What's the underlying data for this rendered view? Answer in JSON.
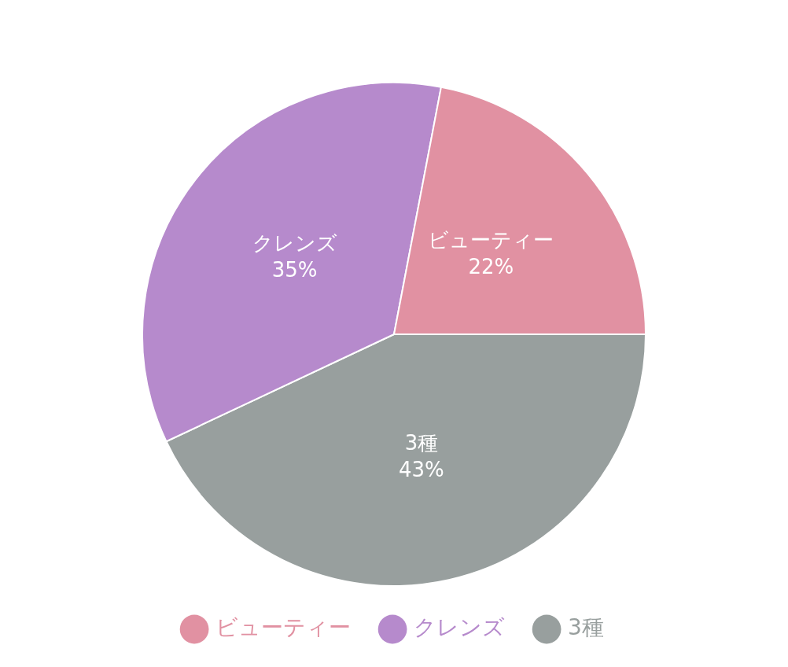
{
  "chart_data": {
    "type": "pie",
    "categories": [
      "ビューティー",
      "クレンズ",
      "3種"
    ],
    "values": [
      22,
      35,
      43
    ],
    "colors": [
      "#e191a2",
      "#b68acc",
      "#989f9e"
    ],
    "value_labels": [
      "22%",
      "35%",
      "43%"
    ],
    "legend": "bottom"
  }
}
